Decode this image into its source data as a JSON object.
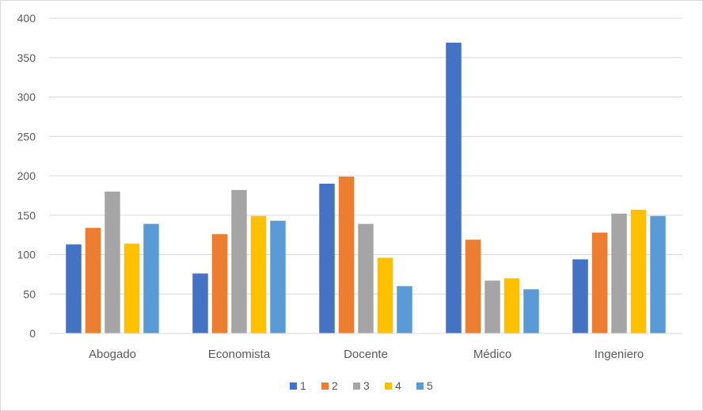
{
  "chart_data": {
    "type": "bar",
    "title": "",
    "xlabel": "",
    "ylabel": "",
    "ylim": [
      0,
      400
    ],
    "y_ticks": [
      0,
      50,
      100,
      150,
      200,
      250,
      300,
      350,
      400
    ],
    "grid": true,
    "legend_position": "bottom",
    "categories": [
      "Abogado",
      "Economista",
      "Docente",
      "Médico",
      "Ingeniero"
    ],
    "series": [
      {
        "name": "1",
        "color": "#4472c4",
        "values": [
          113,
          76,
          190,
          369,
          94
        ]
      },
      {
        "name": "2",
        "color": "#ed7d31",
        "values": [
          134,
          126,
          199,
          119,
          128
        ]
      },
      {
        "name": "3",
        "color": "#a5a5a5",
        "values": [
          180,
          182,
          139,
          67,
          152
        ]
      },
      {
        "name": "4",
        "color": "#ffc000",
        "values": [
          114,
          149,
          96,
          70,
          157
        ]
      },
      {
        "name": "5",
        "color": "#5b9bd5",
        "values": [
          139,
          143,
          60,
          56,
          149
        ]
      }
    ]
  }
}
